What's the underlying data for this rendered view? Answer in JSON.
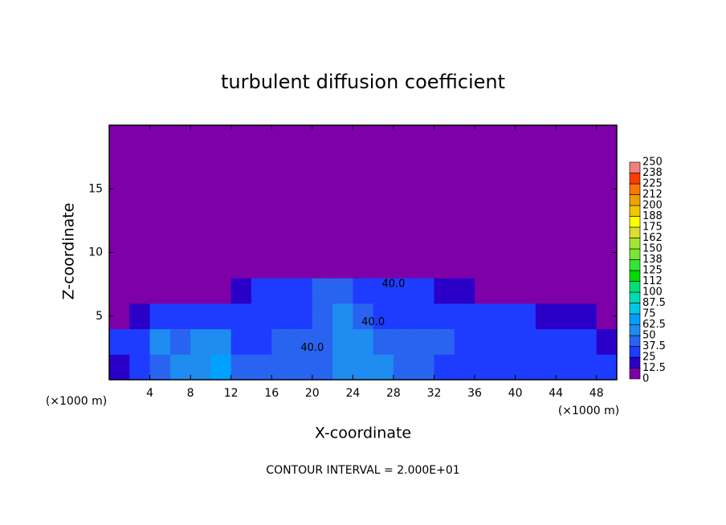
{
  "chart_data": {
    "type": "contour",
    "title": "turbulent diffusion coefficient",
    "x_label": "X-coordinate",
    "y_label": "Z-coordinate",
    "x_unit_left": "(×1000 m)",
    "x_unit_right": "(×1000 m)",
    "footer": "CONTOUR INTERVAL = 2.000E+01",
    "xlim": [
      0,
      50
    ],
    "ylim": [
      0,
      20
    ],
    "xticks": [
      4,
      8,
      12,
      16,
      20,
      24,
      28,
      32,
      36,
      40,
      44,
      48
    ],
    "yticks": [
      5,
      10,
      15
    ],
    "x": [
      1,
      3,
      5,
      7,
      9,
      11,
      13,
      15,
      17,
      19,
      21,
      23,
      25,
      27,
      29,
      31,
      33,
      35,
      37,
      39,
      41,
      43,
      45,
      47,
      49
    ],
    "y": [
      1,
      3,
      5,
      7,
      9,
      11,
      13,
      15,
      17,
      19
    ],
    "values": [
      [
        20,
        35,
        45,
        50,
        55,
        70,
        40,
        45,
        40,
        40,
        45,
        55,
        55,
        50,
        40,
        40,
        35,
        30,
        25,
        25,
        30,
        30,
        25,
        25,
        30
      ],
      [
        25,
        30,
        50,
        45,
        55,
        50,
        35,
        35,
        45,
        40,
        45,
        50,
        50,
        45,
        40,
        45,
        40,
        35,
        30,
        30,
        25,
        30,
        25,
        25,
        20
      ],
      [
        5,
        15,
        30,
        30,
        25,
        25,
        30,
        35,
        30,
        35,
        45,
        50,
        40,
        35,
        35,
        35,
        30,
        30,
        30,
        25,
        25,
        20,
        20,
        15,
        5
      ],
      [
        0,
        0,
        0,
        0,
        0,
        0,
        15,
        25,
        30,
        35,
        40,
        45,
        35,
        30,
        30,
        25,
        20,
        15,
        0,
        0,
        0,
        0,
        0,
        0,
        0
      ],
      [
        0,
        0,
        0,
        0,
        0,
        0,
        0,
        0,
        0,
        0,
        10,
        10,
        0,
        0,
        0,
        0,
        0,
        0,
        0,
        0,
        0,
        0,
        0,
        0,
        0
      ],
      [
        0,
        0,
        0,
        0,
        0,
        0,
        0,
        0,
        0,
        0,
        0,
        0,
        0,
        0,
        0,
        0,
        0,
        0,
        0,
        0,
        0,
        0,
        0,
        0,
        0
      ],
      [
        0,
        0,
        0,
        0,
        0,
        0,
        0,
        0,
        0,
        0,
        0,
        0,
        0,
        0,
        0,
        0,
        0,
        0,
        0,
        0,
        0,
        0,
        0,
        0,
        0
      ],
      [
        0,
        0,
        0,
        0,
        0,
        0,
        0,
        0,
        0,
        0,
        0,
        0,
        0,
        0,
        0,
        0,
        0,
        0,
        0,
        0,
        0,
        0,
        0,
        0,
        0
      ],
      [
        0,
        0,
        0,
        0,
        0,
        0,
        0,
        0,
        0,
        0,
        0,
        0,
        0,
        0,
        0,
        0,
        0,
        0,
        0,
        0,
        0,
        0,
        0,
        0,
        0
      ],
      [
        0,
        0,
        0,
        0,
        0,
        0,
        0,
        0,
        0,
        0,
        0,
        0,
        0,
        0,
        0,
        0,
        0,
        0,
        0,
        0,
        0,
        0,
        0,
        0,
        0
      ]
    ],
    "contour_labels": [
      {
        "text": "40.0",
        "x": 28,
        "y": 7.5
      },
      {
        "text": "40.0",
        "x": 26,
        "y": 4.5
      },
      {
        "text": "40.0",
        "x": 20,
        "y": 2.5
      }
    ],
    "colorbar": {
      "levels": [
        0,
        12.5,
        25,
        37.5,
        50,
        62.5,
        75,
        87.5,
        100,
        112,
        125,
        138,
        150,
        162,
        175,
        188,
        200,
        212,
        225,
        238,
        250
      ],
      "colors": [
        "#7d00a8",
        "#2a00c8",
        "#1e3cff",
        "#2864f0",
        "#1e8cf0",
        "#00a0ff",
        "#00c8e6",
        "#00dcb4",
        "#00e078",
        "#00dc00",
        "#32e632",
        "#78e632",
        "#a0e632",
        "#dcdc32",
        "#ffff00",
        "#f0c800",
        "#f0a000",
        "#fa7800",
        "#ff3c00",
        "#f08080"
      ]
    }
  }
}
